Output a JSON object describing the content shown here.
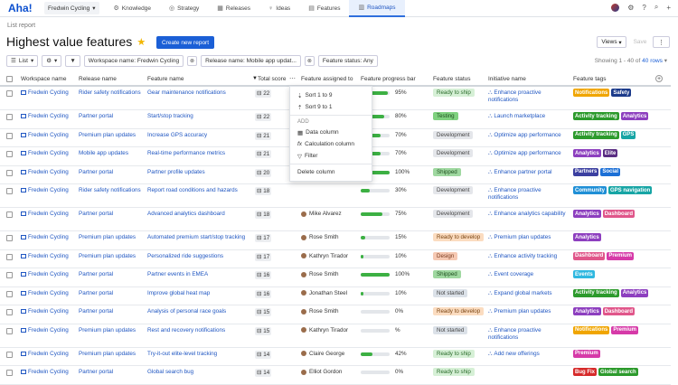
{
  "app": {
    "logo": "Aha!",
    "workspace": "Fredwin Cycling",
    "nav": [
      {
        "label": "Knowledge",
        "icon": "knowledge-icon",
        "glyph": "⚙"
      },
      {
        "label": "Strategy",
        "icon": "strategy-icon",
        "glyph": "◎"
      },
      {
        "label": "Releases",
        "icon": "releases-icon",
        "glyph": "▦"
      },
      {
        "label": "Ideas",
        "icon": "ideas-icon",
        "glyph": "♀"
      },
      {
        "label": "Features",
        "icon": "features-icon",
        "glyph": "▤"
      },
      {
        "label": "Roadmaps",
        "icon": "roadmaps-icon",
        "glyph": "▥"
      }
    ],
    "active_tab": "Roadmaps"
  },
  "page": {
    "breadcrumb": "List report",
    "title": "Highest value features",
    "new_report_label": "Create new report",
    "views_label": "Views",
    "save_label": "Save",
    "more_label": "⋮"
  },
  "filters": {
    "list_label": "List",
    "workspace_filter": "Workspace name: Fredwin Cycling",
    "release_filter": "Release name: Mobile app updat...",
    "status_filter": "Feature status: Any",
    "showing_prefix": "Showing 1 - 40 of",
    "showing_link": "40 rows"
  },
  "columns": [
    "Workspace name",
    "Release name",
    "Feature name",
    "Total score",
    "Feature assigned to",
    "Feature progress bar",
    "Feature status",
    "Initiative name",
    "Feature tags"
  ],
  "colors": {
    "Ready to ship": {
      "bg": "#d6f0d6",
      "fg": "#2a6b2a"
    },
    "Testing": {
      "bg": "#7fd17f",
      "fg": "#1f4f1f"
    },
    "Development": {
      "bg": "#e4e6ea",
      "fg": "#444"
    },
    "Shipped": {
      "bg": "#9fd8a0",
      "fg": "#1f4f1f"
    },
    "Ready to develop": {
      "bg": "#fbdcc0",
      "fg": "#7a4513"
    },
    "Design": {
      "bg": "#f6c9b3",
      "fg": "#7a3b1f"
    },
    "Not started": {
      "bg": "#dbe1e8",
      "fg": "#444"
    },
    "Notifications": "#f0a500",
    "Safety": "#1b3a8a",
    "Activity tracking": "#2c9a2c",
    "Analytics": "#8d3fbf",
    "GPS": "#17a5a5",
    "Elite": "#5a2d82",
    "Partners": "#3b3fa0",
    "Social": "#1b6fd6",
    "Community": "#1f8fd6",
    "GPS navigation": "#17a5a5",
    "Dashboard": "#e0568a",
    "Premium": "#d63aa8",
    "Events": "#2fb8e0",
    "Bug Fix": "#d62a2a",
    "Global search": "#2c9a2c"
  },
  "rows": [
    {
      "ws": "Fredwin Cycling",
      "release": "Rider safety notifications",
      "feature": "Gear maintenance notifications",
      "score": "22",
      "person": "",
      "progress": 95,
      "pct": "95%",
      "status": "Ready to ship",
      "initiative": "Enhance proactive notifications",
      "tags": [
        "Notifications",
        "Safety"
      ]
    },
    {
      "ws": "Fredwin Cycling",
      "release": "Partner portal",
      "feature": "Start/stop tracking",
      "score": "22",
      "person": "",
      "progress": 80,
      "pct": "80%",
      "status": "Testing",
      "initiative": "Launch marketplace",
      "tags": [
        "Activity tracking",
        "Analytics"
      ]
    },
    {
      "ws": "Fredwin Cycling",
      "release": "Premium plan updates",
      "feature": "Increase GPS accuracy",
      "score": "21",
      "person": "",
      "progress": 70,
      "pct": "70%",
      "status": "Development",
      "initiative": "Optimize app performance",
      "tags": [
        "Activity tracking",
        "GPS"
      ]
    },
    {
      "ws": "Fredwin Cycling",
      "release": "Mobile app updates",
      "feature": "Real-time performance metrics",
      "score": "21",
      "person": "",
      "progress": 70,
      "pct": "70%",
      "status": "Development",
      "initiative": "Optimize app performance",
      "tags": [
        "Analytics",
        "Elite"
      ]
    },
    {
      "ws": "Fredwin Cycling",
      "release": "Partner portal",
      "feature": "Partner profile updates",
      "score": "20",
      "person": "",
      "progress": 100,
      "pct": "100%",
      "status": "Shipped",
      "initiative": "Enhance partner portal",
      "tags": [
        "Partners",
        "Social"
      ]
    },
    {
      "ws": "Fredwin Cycling",
      "release": "Rider safety notifications",
      "feature": "Report road conditions and hazards",
      "score": "18",
      "person": "",
      "progress": 30,
      "pct": "30%",
      "status": "Development",
      "initiative": "Enhance proactive notifications",
      "tags": [
        "Community",
        "GPS navigation"
      ]
    },
    {
      "ws": "Fredwin Cycling",
      "release": "Partner portal",
      "feature": "Advanced analytics dashboard",
      "score": "18",
      "person": "Mike Alvarez",
      "progress": 75,
      "pct": "75%",
      "status": "Development",
      "initiative": "Enhance analytics capability",
      "tags": [
        "Analytics",
        "Dashboard"
      ]
    },
    {
      "ws": "Fredwin Cycling",
      "release": "Premium plan updates",
      "feature": "Automated premium start/stop tracking",
      "score": "17",
      "person": "Rose Smith",
      "progress": 15,
      "pct": "15%",
      "status": "Ready to develop",
      "initiative": "Premium plan updates",
      "tags": [
        "Analytics"
      ]
    },
    {
      "ws": "Fredwin Cycling",
      "release": "Premium plan updates",
      "feature": "Personalized ride suggestions",
      "score": "17",
      "person": "Kathryn Tirador",
      "progress": 10,
      "pct": "10%",
      "status": "Design",
      "initiative": "Enhance activity tracking",
      "tags": [
        "Dashboard",
        "Premium"
      ]
    },
    {
      "ws": "Fredwin Cycling",
      "release": "Partner portal",
      "feature": "Partner events in EMEA",
      "score": "16",
      "person": "Rose Smith",
      "progress": 100,
      "pct": "100%",
      "status": "Shipped",
      "initiative": "Event coverage",
      "tags": [
        "Events"
      ]
    },
    {
      "ws": "Fredwin Cycling",
      "release": "Partner portal",
      "feature": "Improve global heat map",
      "score": "16",
      "person": "Jonathan Steel",
      "progress": 10,
      "pct": "10%",
      "status": "Not started",
      "initiative": "Expand global markets",
      "tags": [
        "Activity tracking",
        "Analytics"
      ]
    },
    {
      "ws": "Fredwin Cycling",
      "release": "Partner portal",
      "feature": "Analysis of personal race goals",
      "score": "15",
      "person": "Rose Smith",
      "progress": 0,
      "pct": "0%",
      "status": "Ready to develop",
      "initiative": "Premium plan updates",
      "tags": [
        "Analytics",
        "Dashboard"
      ]
    },
    {
      "ws": "Fredwin Cycling",
      "release": "Premium plan updates",
      "feature": "Rest and recovery notifications",
      "score": "15",
      "person": "Kathryn Tirador",
      "progress": 0,
      "pct": "%",
      "status": "Not started",
      "initiative": "Enhance proactive notifications",
      "tags": [
        "Notifications",
        "Premium"
      ]
    },
    {
      "ws": "Fredwin Cycling",
      "release": "Premium plan updates",
      "feature": "Try-it-out elite-level tracking",
      "score": "14",
      "person": "Claire George",
      "progress": 42,
      "pct": "42%",
      "status": "Ready to ship",
      "initiative": "Add new offerings",
      "tags": [
        "Premium"
      ]
    },
    {
      "ws": "Fredwin Cycling",
      "release": "Partner portal",
      "feature": "Global search bug",
      "score": "14",
      "person": "Elliot Gordon",
      "progress": 0,
      "pct": "0%",
      "status": "Ready to ship",
      "initiative": "",
      "tags": [
        "Bug Fix",
        "Global search"
      ]
    }
  ],
  "menu": {
    "sort_asc": "Sort 1 to 9",
    "sort_desc": "Sort 9 to 1",
    "add_section": "ADD",
    "add_column": "Data column",
    "add_calc": "Calculation column",
    "add_filter": "Filter",
    "delete": "Delete column"
  }
}
